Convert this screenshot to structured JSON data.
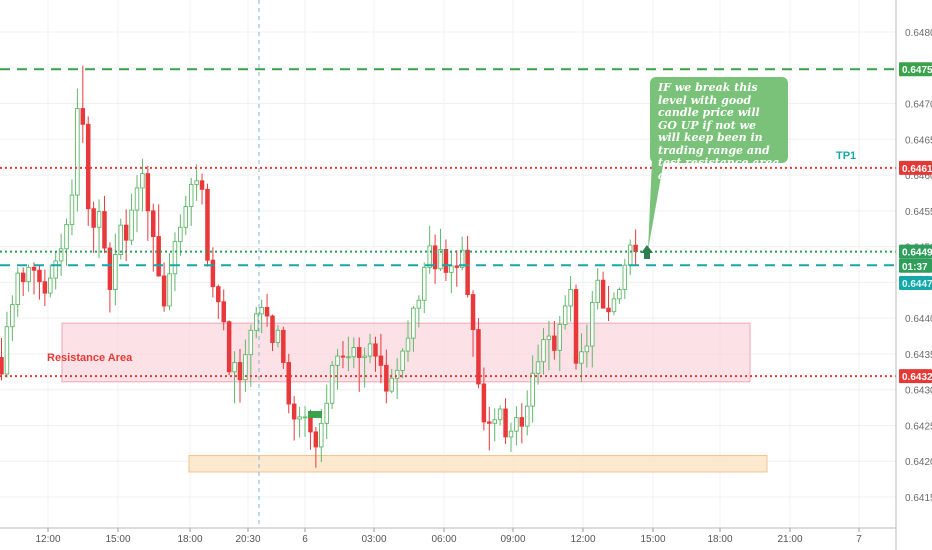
{
  "chart_data": {
    "type": "candlestick",
    "title": "",
    "xlabel": "",
    "ylabel": "",
    "ylim": [
      0.64115,
      0.64835
    ],
    "y_ticks": [
      "0.6480",
      "0.6475",
      "0.6470",
      "0.6465",
      "0.6460",
      "0.6455",
      "0.6450",
      "0.6445",
      "0.6440",
      "0.6435",
      "0.6430",
      "0.6425",
      "0.6420",
      "0.6415"
    ],
    "x_ticks": [
      "12:00",
      "15:00",
      "18:00",
      "20:30",
      "6",
      "03:00",
      "06:00",
      "09:00",
      "12:00",
      "15:00",
      "18:00",
      "21:00",
      "7"
    ],
    "grid": true,
    "price_labels": {
      "upper_green": "0.6475",
      "red_top": "0.6461",
      "current": "0.6449",
      "countdown": "01:37",
      "teal": "0.6447",
      "red_bottom": "0.6432"
    },
    "levels": [
      {
        "value": 0.64748,
        "color": "#3aa24a",
        "style": "dashed"
      },
      {
        "value": 0.6461,
        "color": "#e53935",
        "style": "dotted"
      },
      {
        "value": 0.64493,
        "color": "#2e9e5a",
        "style": "dotted"
      },
      {
        "value": 0.64474,
        "color": "#16a8a8",
        "style": "dashed"
      },
      {
        "value": 0.64319,
        "color": "#e53935",
        "style": "dotted"
      }
    ],
    "zones": [
      {
        "label": "Resistance Area",
        "y_low": 0.64311,
        "y_high": 0.64393,
        "color": "#fbd3da"
      },
      {
        "label": "",
        "y_low": 0.64185,
        "y_high": 0.64208,
        "color": "#fde4c4"
      }
    ],
    "annotations": {
      "tp1": "TP1",
      "resistance": "Resistance Area",
      "note": "IF we break this level with good candle price will GO UP if not we will keep been in trading range and test resistance area again"
    },
    "candles": [
      [
        0.64345,
        0.64372,
        0.64313,
        0.64322
      ],
      [
        0.64322,
        0.64409,
        0.64317,
        0.64388
      ],
      [
        0.64388,
        0.64432,
        0.64368,
        0.64419
      ],
      [
        0.64419,
        0.64471,
        0.64402,
        0.64463
      ],
      [
        0.64463,
        0.64471,
        0.64431,
        0.64451
      ],
      [
        0.64451,
        0.64475,
        0.64437,
        0.64471
      ],
      [
        0.64471,
        0.64478,
        0.64433,
        0.64467
      ],
      [
        0.64467,
        0.64473,
        0.64426,
        0.64451
      ],
      [
        0.64451,
        0.64468,
        0.64417,
        0.64435
      ],
      [
        0.64435,
        0.64475,
        0.64429,
        0.64456
      ],
      [
        0.64456,
        0.64492,
        0.6444,
        0.6448
      ],
      [
        0.6448,
        0.64518,
        0.64459,
        0.64497
      ],
      [
        0.64497,
        0.64539,
        0.64473,
        0.64531
      ],
      [
        0.64531,
        0.64594,
        0.64516,
        0.64572
      ],
      [
        0.64572,
        0.64721,
        0.64549,
        0.64693
      ],
      [
        0.64693,
        0.64753,
        0.64645,
        0.64671
      ],
      [
        0.64671,
        0.64682,
        0.64529,
        0.64553
      ],
      [
        0.64553,
        0.64563,
        0.64491,
        0.64527
      ],
      [
        0.64527,
        0.64566,
        0.64484,
        0.64549
      ],
      [
        0.64549,
        0.64571,
        0.64491,
        0.64498
      ],
      [
        0.64498,
        0.64506,
        0.64408,
        0.6444
      ],
      [
        0.6444,
        0.64518,
        0.64418,
        0.64489
      ],
      [
        0.64489,
        0.64539,
        0.64482,
        0.6453
      ],
      [
        0.6453,
        0.64552,
        0.6448,
        0.64509
      ],
      [
        0.64509,
        0.64574,
        0.64502,
        0.64551
      ],
      [
        0.64551,
        0.646,
        0.6452,
        0.64582
      ],
      [
        0.64582,
        0.64623,
        0.64549,
        0.64602
      ],
      [
        0.64602,
        0.64613,
        0.64508,
        0.6455
      ],
      [
        0.6455,
        0.6456,
        0.64465,
        0.64514
      ],
      [
        0.64514,
        0.64559,
        0.64458,
        0.64459
      ],
      [
        0.64459,
        0.64478,
        0.64409,
        0.64417
      ],
      [
        0.64417,
        0.64491,
        0.64411,
        0.64462
      ],
      [
        0.64462,
        0.6452,
        0.64438,
        0.64507
      ],
      [
        0.64507,
        0.64545,
        0.64487,
        0.64527
      ],
      [
        0.64527,
        0.64571,
        0.64516,
        0.64556
      ],
      [
        0.64556,
        0.64596,
        0.64529,
        0.64587
      ],
      [
        0.64587,
        0.64615,
        0.64564,
        0.64592
      ],
      [
        0.64592,
        0.64602,
        0.64559,
        0.6458
      ],
      [
        0.6458,
        0.64588,
        0.64472,
        0.64481
      ],
      [
        0.64481,
        0.64499,
        0.64429,
        0.64444
      ],
      [
        0.64444,
        0.64447,
        0.64399,
        0.64423
      ],
      [
        0.64423,
        0.6444,
        0.64383,
        0.64395
      ],
      [
        0.64395,
        0.64397,
        0.6432,
        0.64325
      ],
      [
        0.64325,
        0.64354,
        0.64281,
        0.64338
      ],
      [
        0.64338,
        0.64357,
        0.64282,
        0.64314
      ],
      [
        0.64314,
        0.6437,
        0.64297,
        0.64349
      ],
      [
        0.64349,
        0.64391,
        0.64304,
        0.64383
      ],
      [
        0.64383,
        0.64416,
        0.64372,
        0.64406
      ],
      [
        0.64406,
        0.64426,
        0.64379,
        0.64415
      ],
      [
        0.64415,
        0.64434,
        0.64388,
        0.64403
      ],
      [
        0.64403,
        0.64405,
        0.64354,
        0.64366
      ],
      [
        0.64366,
        0.6439,
        0.64359,
        0.64383
      ],
      [
        0.64383,
        0.64388,
        0.64329,
        0.64338
      ],
      [
        0.64338,
        0.6435,
        0.64267,
        0.6428
      ],
      [
        0.6428,
        0.64291,
        0.64229,
        0.64259
      ],
      [
        0.64259,
        0.64276,
        0.64233,
        0.64262
      ],
      [
        0.64262,
        0.64277,
        0.64234,
        0.64262
      ],
      [
        0.64262,
        0.64272,
        0.64216,
        0.64241
      ],
      [
        0.64241,
        0.64248,
        0.64191,
        0.6422
      ],
      [
        0.6422,
        0.64273,
        0.64199,
        0.64253
      ],
      [
        0.64253,
        0.64307,
        0.64231,
        0.64281
      ],
      [
        0.64281,
        0.6434,
        0.64273,
        0.64334
      ],
      [
        0.64334,
        0.64357,
        0.643,
        0.64347
      ],
      [
        0.64347,
        0.64368,
        0.6433,
        0.64346
      ],
      [
        0.64346,
        0.64374,
        0.64326,
        0.64346
      ],
      [
        0.64346,
        0.64373,
        0.6433,
        0.64359
      ],
      [
        0.64359,
        0.64373,
        0.64297,
        0.64345
      ],
      [
        0.64345,
        0.64359,
        0.64303,
        0.64347
      ],
      [
        0.64347,
        0.64378,
        0.64337,
        0.64364
      ],
      [
        0.64364,
        0.64374,
        0.64325,
        0.64347
      ],
      [
        0.64347,
        0.64378,
        0.64309,
        0.64334
      ],
      [
        0.64334,
        0.64356,
        0.64281,
        0.64298
      ],
      [
        0.64298,
        0.64329,
        0.64295,
        0.64316
      ],
      [
        0.64316,
        0.64344,
        0.64287,
        0.64327
      ],
      [
        0.64327,
        0.64358,
        0.64316,
        0.64354
      ],
      [
        0.64354,
        0.64397,
        0.64339,
        0.64372
      ],
      [
        0.64372,
        0.64417,
        0.64353,
        0.64414
      ],
      [
        0.64414,
        0.64432,
        0.64387,
        0.64425
      ],
      [
        0.64425,
        0.64478,
        0.64407,
        0.64471
      ],
      [
        0.64471,
        0.64529,
        0.64462,
        0.64501
      ],
      [
        0.64501,
        0.64517,
        0.64448,
        0.64469
      ],
      [
        0.64469,
        0.64525,
        0.64466,
        0.64496
      ],
      [
        0.64496,
        0.6451,
        0.64452,
        0.64464
      ],
      [
        0.64464,
        0.64494,
        0.64435,
        0.64473
      ],
      [
        0.64473,
        0.64495,
        0.64444,
        0.64471
      ],
      [
        0.64471,
        0.64514,
        0.64467,
        0.64495
      ],
      [
        0.64495,
        0.64515,
        0.64429,
        0.64433
      ],
      [
        0.64433,
        0.64439,
        0.64346,
        0.64384
      ],
      [
        0.64384,
        0.644,
        0.64302,
        0.64308
      ],
      [
        0.64308,
        0.64331,
        0.64243,
        0.64255
      ],
      [
        0.64255,
        0.64276,
        0.64215,
        0.64253
      ],
      [
        0.64253,
        0.64274,
        0.64228,
        0.64258
      ],
      [
        0.64258,
        0.64278,
        0.6425,
        0.64273
      ],
      [
        0.64273,
        0.64288,
        0.64224,
        0.64234
      ],
      [
        0.64234,
        0.64254,
        0.64213,
        0.64242
      ],
      [
        0.64242,
        0.64277,
        0.64222,
        0.64261
      ],
      [
        0.64261,
        0.64281,
        0.64225,
        0.64249
      ],
      [
        0.64249,
        0.64299,
        0.64236,
        0.64277
      ],
      [
        0.64277,
        0.64348,
        0.64254,
        0.64323
      ],
      [
        0.64323,
        0.64363,
        0.64307,
        0.64339
      ],
      [
        0.64339,
        0.64386,
        0.64321,
        0.6437
      ],
      [
        0.6437,
        0.64396,
        0.64327,
        0.64375
      ],
      [
        0.64375,
        0.64396,
        0.64342,
        0.64355
      ],
      [
        0.64355,
        0.64403,
        0.64326,
        0.64391
      ],
      [
        0.64391,
        0.64432,
        0.64384,
        0.64417
      ],
      [
        0.64417,
        0.64459,
        0.64395,
        0.6444
      ],
      [
        0.6444,
        0.64447,
        0.64328,
        0.64337
      ],
      [
        0.64337,
        0.64379,
        0.64311,
        0.64353
      ],
      [
        0.64353,
        0.64391,
        0.64331,
        0.64361
      ],
      [
        0.64361,
        0.64438,
        0.64331,
        0.64422
      ],
      [
        0.64422,
        0.6447,
        0.64412,
        0.64453
      ],
      [
        0.64453,
        0.64465,
        0.64414,
        0.64414
      ],
      [
        0.64414,
        0.64445,
        0.64396,
        0.64409
      ],
      [
        0.64409,
        0.64436,
        0.64404,
        0.64427
      ],
      [
        0.64427,
        0.64443,
        0.6442,
        0.6444
      ],
      [
        0.6444,
        0.64483,
        0.64427,
        0.64474
      ],
      [
        0.64474,
        0.6451,
        0.6446,
        0.64502
      ],
      [
        0.64502,
        0.64524,
        0.64475,
        0.64493
      ]
    ]
  }
}
